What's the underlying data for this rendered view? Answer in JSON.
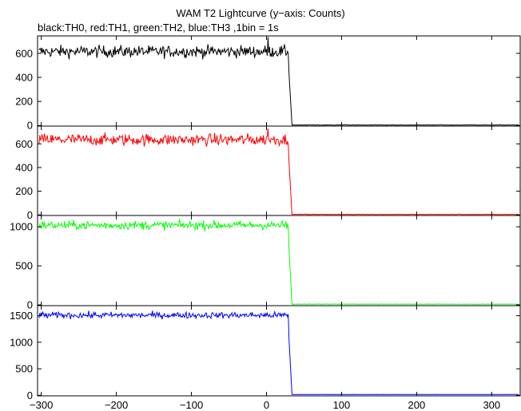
{
  "title": "WAM T2 Lightcurve (y−axis: Counts)",
  "subtitle": "black:TH0, red:TH1, green:TH2, blue:TH3 ,1bin = 1s",
  "chart_data": [
    {
      "type": "line",
      "series": [
        {
          "name": "TH0",
          "color": "#000000"
        }
      ],
      "xlim": [
        -305,
        338
      ],
      "ylim": [
        -5,
        745
      ],
      "yticks": [
        0,
        200,
        400,
        600
      ],
      "x_axis_shared": true,
      "profile": {
        "pre_level": 615,
        "noise": 55,
        "spike_at": 2,
        "spike_value": 735,
        "drop_start": 30,
        "drop_end": 34,
        "post_level": 3
      }
    },
    {
      "type": "line",
      "series": [
        {
          "name": "TH1",
          "color": "#ff0000"
        }
      ],
      "xlim": [
        -305,
        338
      ],
      "ylim": [
        -5,
        750
      ],
      "yticks": [
        0,
        200,
        400,
        600
      ],
      "profile": {
        "pre_level": 635,
        "noise": 55,
        "spike_at": 2,
        "spike_value": 730,
        "drop_start": 30,
        "drop_end": 34,
        "post_level": 3
      }
    },
    {
      "type": "line",
      "series": [
        {
          "name": "TH2",
          "color": "#00ff00"
        }
      ],
      "xlim": [
        -305,
        338
      ],
      "ylim": [
        -10,
        1145
      ],
      "yticks": [
        0,
        500,
        1000
      ],
      "profile": {
        "pre_level": 1020,
        "noise": 60,
        "spike_at": null,
        "spike_value": null,
        "drop_start": 30,
        "drop_end": 34,
        "post_level": 8
      }
    },
    {
      "type": "line",
      "series": [
        {
          "name": "TH3",
          "color": "#0000ff"
        }
      ],
      "xlim": [
        -305,
        338
      ],
      "ylim": [
        -10,
        1690
      ],
      "yticks": [
        0,
        500,
        1000,
        1500
      ],
      "xticks": [
        -300,
        -200,
        -100,
        0,
        100,
        200,
        300
      ],
      "profile": {
        "pre_level": 1510,
        "noise": 65,
        "spike_at": null,
        "spike_value": null,
        "drop_start": 30,
        "drop_end": 34,
        "post_level": 15
      }
    }
  ],
  "x_tick_labels": [
    "−300",
    "−200",
    "−100",
    "0",
    "100",
    "200",
    "300"
  ],
  "y_tick_labels": [
    [
      "0",
      "200",
      "400",
      "600"
    ],
    [
      "0",
      "200",
      "400",
      "600"
    ],
    [
      "0",
      "500",
      "1000"
    ],
    [
      "0",
      "500",
      "1000",
      "1500"
    ]
  ]
}
